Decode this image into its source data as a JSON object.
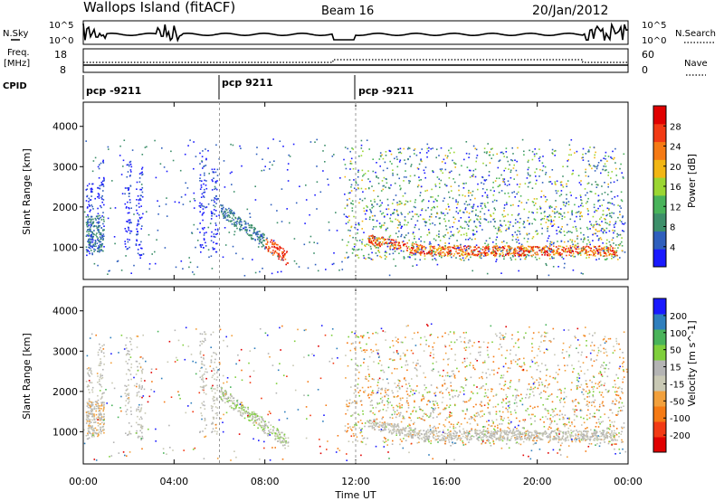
{
  "header": {
    "site": "Wallops Island (fitACF)",
    "beam": "Beam 16",
    "date": "20/Jan/2012"
  },
  "panels": {
    "nsky": {
      "label": "N.Sky",
      "tick_top": "10^5",
      "tick_bottom": "10^0",
      "right_label": "N.Search"
    },
    "freq": {
      "label_line1": "Freq.",
      "label_line2": "[MHz]",
      "left_ticks": [
        "18",
        "8"
      ],
      "right_ticks": [
        "60",
        "0"
      ],
      "right_label": "Nave"
    },
    "cpid": {
      "label": "CPID",
      "segments": [
        {
          "name": "pcp -9211",
          "start_hour": 0
        },
        {
          "name": "pcp 9211",
          "start_hour": 6
        },
        {
          "name": "pcp -9211",
          "start_hour": 12
        }
      ]
    }
  },
  "colors": {
    "power": [
      "#1a1aff",
      "#2f5fbd",
      "#3d8f6a",
      "#49b35a",
      "#9bd632",
      "#f2b614",
      "#f57a14",
      "#f23a14",
      "#e00000"
    ],
    "velocity": [
      "#e00000",
      "#f23a14",
      "#f57a14",
      "#f2a03c",
      "#c8c8b4",
      "#b4b4b4",
      "#7fcf3c",
      "#49b35a",
      "#2f7fbd",
      "#1a1aff"
    ]
  },
  "chart_data": [
    {
      "type": "heatmap",
      "name": "power",
      "ylabel": "Slant Range [km]",
      "yticks": [
        1000,
        2000,
        3000,
        4000
      ],
      "ylim": [
        200,
        4600
      ],
      "xlim_hours": [
        0,
        24
      ],
      "colorbar": {
        "label": "Power [dB]",
        "ticks": [
          4,
          8,
          12,
          16,
          20,
          24,
          28
        ]
      }
    },
    {
      "type": "heatmap",
      "name": "velocity",
      "ylabel": "Slant Range [km]",
      "yticks": [
        1000,
        2000,
        3000,
        4000
      ],
      "ylim": [
        200,
        4600
      ],
      "xlim_hours": [
        0,
        24
      ],
      "colorbar": {
        "label": "Velocity [m s^-1]",
        "ticks": [
          -200,
          -100,
          -50,
          -15,
          15,
          50,
          100,
          200
        ]
      }
    }
  ],
  "xaxis": {
    "ticks": [
      "00:00",
      "04:00",
      "08:00",
      "12:00",
      "16:00",
      "20:00",
      "00:00"
    ],
    "label": "Time UT"
  }
}
